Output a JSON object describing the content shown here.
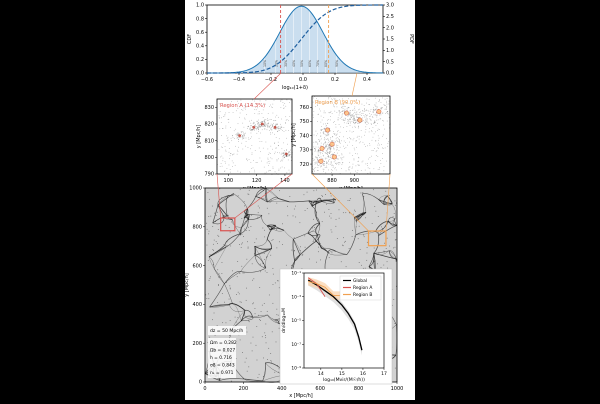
{
  "chart_data": [
    {
      "type": "line",
      "xlabel": "log₁₀(1+δ)",
      "ylabel_left": "CDF",
      "ylabel_right": "PDF",
      "xlim": [
        -0.6,
        0.5
      ],
      "ylim_left": [
        0,
        1.0
      ],
      "ylim_right": [
        0,
        3.0
      ],
      "x_ticks": [
        "−0.6",
        "−0.4",
        "−0.2",
        "0.0",
        "0.2",
        "0.4"
      ],
      "y_ticks_left": [
        "0.0",
        "0.2",
        "0.4",
        "0.6",
        "0.8",
        "1.0"
      ],
      "y_ticks_right": [
        "0.0",
        "0.5",
        "1.0",
        "1.5",
        "2.0",
        "2.5",
        "3.0"
      ],
      "percentile_labels": [
        "10%",
        "20%",
        "30%",
        "40%",
        "50%",
        "60%",
        "70%",
        "80%",
        "90%"
      ],
      "percentile_x": [
        -0.24,
        -0.17,
        -0.11,
        -0.06,
        -0.01,
        0.04,
        0.09,
        0.14,
        0.21
      ],
      "markers": [
        {
          "name": "Region A",
          "x": -0.14,
          "color": "#d9534f"
        },
        {
          "name": "Region B",
          "x": 0.16,
          "color": "#f0a050"
        }
      ],
      "series": [
        {
          "role": "PDF",
          "mu": -0.01,
          "sigma": 0.135,
          "peak": 2.95,
          "color": "#1f77b4"
        },
        {
          "role": "CDF",
          "mu": -0.01,
          "sigma": 0.135,
          "color": "#1f5f9f",
          "dash": true
        }
      ]
    },
    {
      "type": "scatter",
      "title": "Region A (14.3%)",
      "title_color": "#d9534f",
      "xlabel": "x [Mpc/h]",
      "ylabel": "y [Mpc/h]",
      "xlim": [
        92,
        145
      ],
      "ylim": [
        790,
        835
      ],
      "x_ticks": [
        100,
        120,
        140
      ],
      "y_ticks": [
        790,
        800,
        810,
        820,
        830
      ],
      "halos": [
        [
          118,
          818
        ],
        [
          124,
          820
        ],
        [
          133,
          818
        ],
        [
          108,
          813
        ],
        [
          141,
          802
        ]
      ]
    },
    {
      "type": "scatter",
      "title": "Region B (90.0%)",
      "title_color": "#f0a050",
      "xlabel": "x [Mpc/h]",
      "ylabel": "y [Mpc/h]",
      "xlim": [
        862,
        932
      ],
      "ylim": [
        713,
        768
      ],
      "x_ticks": [
        880,
        900
      ],
      "y_ticks": [
        720,
        730,
        740,
        750,
        760
      ],
      "halos": [
        [
          871,
          731
        ],
        [
          876,
          744
        ],
        [
          880,
          734
        ],
        [
          893,
          756
        ],
        [
          905,
          751
        ],
        [
          922,
          757
        ],
        [
          882,
          725
        ],
        [
          870,
          722
        ]
      ]
    },
    {
      "type": "heatmap",
      "xlabel": "x [Mpc/h]",
      "ylabel": "y [Mpc/h]",
      "xlim": [
        0,
        1000
      ],
      "ylim": [
        0,
        1000
      ],
      "x_ticks": [
        0,
        200,
        400,
        600,
        800,
        1000
      ],
      "y_ticks": [
        0,
        200,
        400,
        600,
        800,
        1000
      ],
      "regions": [
        {
          "name": "Region A",
          "x0": 92,
          "y0": 790,
          "x1": 145,
          "y1": 835,
          "color": "#d9534f"
        },
        {
          "name": "Region B",
          "x0": 862,
          "y0": 713,
          "x1": 932,
          "y1": 768,
          "color": "#f0a050"
        }
      ],
      "slice_label": "dz = 50 Mpc/h",
      "params": [
        "Ωm = 0.282",
        "Ωb = 0.027",
        "h = 0.716",
        "σ8 = 0.843",
        "nₛ = 0.971"
      ]
    },
    {
      "type": "line",
      "xlabel": "log₁₀(Mvir/(M☉/h))",
      "ylabel": "dn/dlog₁₀M",
      "x_ticks": [
        14,
        15,
        16,
        17
      ],
      "xlim": [
        13.2,
        17
      ],
      "ylim_log": [
        -9,
        -1
      ],
      "legend": [
        "Global",
        "Region A",
        "Region B"
      ],
      "series": [
        {
          "name": "Global",
          "color": "#000000",
          "x": [
            13.4,
            13.8,
            14.2,
            14.6,
            15.0,
            15.3,
            15.6,
            15.8,
            15.95
          ],
          "logy": [
            -1.6,
            -2.0,
            -2.5,
            -3.0,
            -3.7,
            -4.4,
            -5.3,
            -6.4,
            -7.5
          ]
        },
        {
          "name": "Region A",
          "color": "#d9534f",
          "x": [
            13.4,
            13.8,
            14.2
          ],
          "logy": [
            -1.4,
            -1.9,
            -3.0
          ]
        },
        {
          "name": "Region B",
          "color": "#f0a050",
          "x": [
            13.4,
            13.8,
            14.2,
            14.6,
            15.0
          ],
          "logy": [
            -1.7,
            -1.9,
            -2.2,
            -2.9,
            -2.9
          ]
        }
      ]
    }
  ]
}
